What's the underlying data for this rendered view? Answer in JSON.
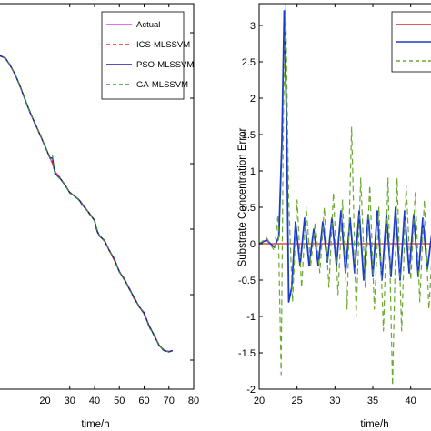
{
  "chart_data": [
    {
      "type": "line",
      "title": "",
      "xlabel": "time/h",
      "ylabel": "",
      "xlim": [
        0,
        80
      ],
      "ylim": [
        0,
        1
      ],
      "x_ticks": [
        "20",
        "30",
        "40",
        "50",
        "60",
        "70",
        "80"
      ],
      "legend": {
        "placement": "top-right",
        "entries": [
          "Actual",
          "ICS-MLSSVM",
          "PSO-MLSSVM",
          "GA-MLSSVM"
        ]
      },
      "series": [
        {
          "name": "Actual",
          "color": "#e040e0",
          "x": [
            0,
            2,
            4,
            6,
            8,
            10,
            12,
            14,
            16,
            18,
            20,
            22,
            23,
            24,
            26,
            28,
            30,
            32,
            34,
            35,
            36,
            38,
            40,
            41,
            42,
            44,
            46,
            48,
            50,
            52,
            54,
            56,
            58,
            60,
            62,
            64,
            66,
            68,
            70,
            71.5
          ],
          "y": [
            0.865,
            0.865,
            0.858,
            0.84,
            0.815,
            0.785,
            0.75,
            0.718,
            0.688,
            0.66,
            0.63,
            0.6,
            0.585,
            0.565,
            0.548,
            0.53,
            0.51,
            0.5,
            0.49,
            0.478,
            0.472,
            0.455,
            0.438,
            0.41,
            0.398,
            0.385,
            0.36,
            0.335,
            0.305,
            0.285,
            0.262,
            0.235,
            0.215,
            0.195,
            0.165,
            0.14,
            0.115,
            0.1,
            0.098,
            0.1
          ]
        },
        {
          "name": "ICS-MLSSVM",
          "color": "#ff2020",
          "x": [
            0,
            2,
            4,
            6,
            8,
            10,
            12,
            14,
            16,
            18,
            20,
            22,
            23,
            24,
            26,
            28,
            30,
            32,
            34,
            35,
            36,
            38,
            40,
            41,
            42,
            44,
            46,
            48,
            50,
            52,
            54,
            56,
            58,
            60,
            62,
            64,
            66,
            68,
            70,
            71.5
          ],
          "y": [
            0.865,
            0.866,
            0.857,
            0.841,
            0.814,
            0.786,
            0.749,
            0.719,
            0.687,
            0.661,
            0.629,
            0.601,
            0.588,
            0.563,
            0.549,
            0.529,
            0.511,
            0.499,
            0.491,
            0.476,
            0.473,
            0.454,
            0.439,
            0.408,
            0.399,
            0.384,
            0.361,
            0.334,
            0.306,
            0.284,
            0.263,
            0.234,
            0.216,
            0.194,
            0.166,
            0.139,
            0.116,
            0.099,
            0.098,
            0.1
          ]
        },
        {
          "name": "PSO-MLSSVM",
          "color": "#1a1aa0",
          "x": [
            0,
            2,
            4,
            6,
            8,
            10,
            12,
            14,
            16,
            18,
            20,
            22,
            23,
            24,
            26,
            28,
            30,
            32,
            34,
            35,
            36,
            38,
            40,
            41,
            42,
            44,
            46,
            48,
            50,
            52,
            54,
            56,
            58,
            60,
            62,
            64,
            66,
            68,
            70,
            71.5
          ],
          "y": [
            0.865,
            0.864,
            0.859,
            0.839,
            0.816,
            0.784,
            0.751,
            0.717,
            0.689,
            0.659,
            0.631,
            0.599,
            0.6,
            0.56,
            0.547,
            0.531,
            0.509,
            0.501,
            0.489,
            0.48,
            0.471,
            0.456,
            0.437,
            0.412,
            0.397,
            0.386,
            0.359,
            0.338,
            0.304,
            0.286,
            0.26,
            0.238,
            0.214,
            0.198,
            0.163,
            0.141,
            0.114,
            0.101,
            0.097,
            0.1
          ]
        },
        {
          "name": "GA-MLSSVM",
          "color": "#2e9a2e",
          "x": [
            0,
            2,
            4,
            6,
            8,
            10,
            12,
            14,
            16,
            18,
            20,
            22,
            23,
            24,
            26,
            28,
            30,
            32,
            34,
            35,
            36,
            38,
            40,
            41,
            42,
            44,
            46,
            48,
            50,
            52,
            54,
            56,
            58,
            60,
            62,
            64,
            66,
            68,
            70,
            71.5
          ],
          "y": [
            0.865,
            0.863,
            0.86,
            0.838,
            0.817,
            0.783,
            0.752,
            0.716,
            0.69,
            0.658,
            0.632,
            0.598,
            0.605,
            0.558,
            0.546,
            0.532,
            0.508,
            0.502,
            0.488,
            0.482,
            0.47,
            0.457,
            0.436,
            0.415,
            0.396,
            0.387,
            0.358,
            0.34,
            0.303,
            0.288,
            0.258,
            0.24,
            0.212,
            0.2,
            0.16,
            0.143,
            0.112,
            0.103,
            0.096,
            0.1
          ]
        }
      ]
    },
    {
      "type": "line",
      "title": "",
      "xlabel": "time/h",
      "ylabel": "Substrate Concentration Error",
      "xlim": [
        20,
        44
      ],
      "ylim": [
        -2,
        3.3
      ],
      "x_ticks": [
        "20",
        "25",
        "30",
        "35",
        "40"
      ],
      "y_ticks": [
        "3",
        "2.5",
        "2",
        "1.5",
        "1",
        "0.5",
        "0",
        "-0.5",
        "-1",
        "-1.5",
        "-2"
      ],
      "legend": {
        "placement": "top-right",
        "entries": [
          "",
          "",
          ""
        ]
      },
      "series": [
        {
          "color": "#e02020",
          "x": [
            20,
            44
          ],
          "y": [
            0,
            0
          ]
        },
        {
          "color": "#1a3ccc",
          "x": [
            20,
            21,
            22,
            22.6,
            23.0,
            23.3,
            23.6,
            23.9,
            24.3,
            24.8,
            25.4,
            26.0,
            26.6,
            27.2,
            27.8,
            28.4,
            29.0,
            29.6,
            30.2,
            30.8,
            31.4,
            32.0,
            32.6,
            33.2,
            33.8,
            34.4,
            35.0,
            35.6,
            36.2,
            36.8,
            37.4,
            38.0,
            38.6,
            39.2,
            39.8,
            40.4,
            41.0,
            41.6,
            42.2,
            42.8,
            43.4,
            44
          ],
          "y": [
            0,
            0.05,
            -0.05,
            0.1,
            1.4,
            3.2,
            1.8,
            -0.8,
            -0.6,
            0.3,
            -0.3,
            0.35,
            -0.3,
            0.2,
            -0.3,
            0.3,
            -0.25,
            0.35,
            -0.3,
            0.45,
            -0.4,
            0.35,
            -0.4,
            0.45,
            -0.5,
            0.4,
            -0.45,
            0.45,
            -0.5,
            0.4,
            -0.45,
            0.5,
            -0.5,
            0.45,
            -0.4,
            0.4,
            -0.45,
            0.35,
            -0.35,
            0.15,
            -0.3,
            0.1
          ]
        },
        {
          "color": "#6aa832",
          "x": [
            20,
            21,
            22,
            22.5,
            22.9,
            23.2,
            23.5,
            23.9,
            24.4,
            25.0,
            25.6,
            26.2,
            26.8,
            27.4,
            28.0,
            28.6,
            29.2,
            29.8,
            30.4,
            31.0,
            31.6,
            32.2,
            32.8,
            33.4,
            34.0,
            34.6,
            35.2,
            35.8,
            36.4,
            37.0,
            37.6,
            38.2,
            38.8,
            39.4,
            40.0,
            40.6,
            41.2,
            41.8,
            42.4,
            43.0,
            43.6,
            44
          ],
          "y": [
            0,
            0.08,
            -0.1,
            0.4,
            -1.8,
            1.8,
            3.3,
            0.6,
            -0.8,
            0.6,
            -0.6,
            0.5,
            -0.3,
            0.3,
            -0.4,
            0.5,
            -0.6,
            0.7,
            -0.7,
            0.6,
            -0.9,
            1.6,
            -1.0,
            0.9,
            -0.6,
            0.8,
            -0.9,
            0.5,
            -1.2,
            0.9,
            -1.95,
            0.9,
            -1.2,
            0.8,
            -0.5,
            0.7,
            -0.8,
            0.6,
            -0.9,
            0.2,
            -0.4,
            0.1
          ]
        }
      ]
    }
  ]
}
